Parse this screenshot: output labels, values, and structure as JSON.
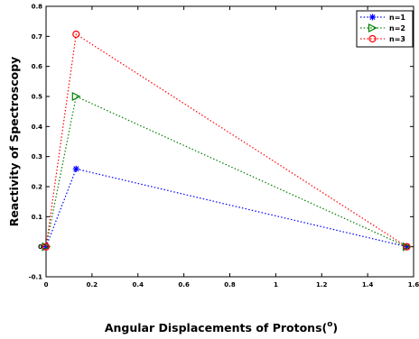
{
  "chart_data": {
    "type": "line",
    "title": "",
    "xlabel": "Angular Displacements of Protons(",
    "xlabel_unit": "o",
    "xlabel_close": ")",
    "ylabel": "Reactivity of Spectroscopy",
    "xlim": [
      0,
      1.6
    ],
    "ylim": [
      -0.1,
      0.8
    ],
    "x_ticks": [
      "0",
      "0.2",
      "0.4",
      "0.6",
      "0.8",
      "1",
      "1.2",
      "1.4",
      "1.6"
    ],
    "x_tick_values": [
      0,
      0.2,
      0.4,
      0.6,
      0.8,
      1.0,
      1.2,
      1.4,
      1.6
    ],
    "y_ticks": [
      "-0.1",
      "0",
      "0.1",
      "0.2",
      "0.3",
      "0.4",
      "0.5",
      "0.6",
      "0.7",
      "0.8"
    ],
    "y_tick_values": [
      -0.1,
      0,
      0.1,
      0.2,
      0.3,
      0.4,
      0.5,
      0.6,
      0.7,
      0.8
    ],
    "grid": false,
    "legend_position": "top-right",
    "series": [
      {
        "name": "n=1",
        "color": "#0000ff",
        "marker": "star",
        "x": [
          0,
          0.1309,
          1.5708
        ],
        "y": [
          0,
          0.259,
          0
        ]
      },
      {
        "name": "n=2",
        "color": "#008000",
        "marker": "triangle",
        "x": [
          0,
          0.1309,
          1.5708
        ],
        "y": [
          0,
          0.5,
          0
        ]
      },
      {
        "name": "n=3",
        "color": "#ff0000",
        "marker": "circle",
        "x": [
          0,
          0.1309,
          1.5708
        ],
        "y": [
          0,
          0.707,
          0
        ]
      }
    ]
  }
}
